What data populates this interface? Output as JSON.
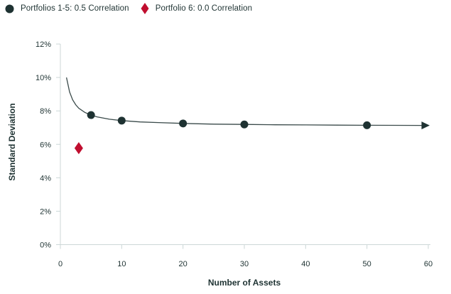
{
  "colors": {
    "ink": "#1e3232",
    "red": "#c00e2f",
    "axis_line": "#ccd7d7",
    "line": "#3a4a4a",
    "background": "#ffffff"
  },
  "legend": {
    "items": [
      {
        "label": "Portfolios 1-5: 0.5 Correlation",
        "marker": "circle-marker",
        "color": "#1e3232"
      },
      {
        "label": "Portfolio 6: 0.0 Correlation",
        "marker": "diamond-marker",
        "color": "#c00e2f"
      }
    ]
  },
  "chart_data": {
    "type": "line",
    "title": "",
    "xlabel": "Number of Assets",
    "ylabel": "Standard Deviation",
    "xlim": [
      0,
      60
    ],
    "ylim": [
      0,
      12
    ],
    "x_ticks": [
      0,
      10,
      20,
      30,
      40,
      50,
      60
    ],
    "y_ticks": [
      "0%",
      "2%",
      "4%",
      "6%",
      "8%",
      "10%",
      "12%"
    ],
    "y_tick_values": [
      0,
      2,
      4,
      6,
      8,
      10,
      12
    ],
    "grid": false,
    "legend_position": "top-left",
    "series": [
      {
        "name": "Portfolios 1-5: 0.5 Correlation",
        "type": "line+markers",
        "marker": "circle",
        "color": "#1e3232",
        "markers": [
          [
            5,
            7.75
          ],
          [
            10,
            7.42
          ],
          [
            20,
            7.25
          ],
          [
            30,
            7.19
          ],
          [
            50,
            7.14
          ]
        ],
        "curve": [
          [
            1,
            10.0
          ],
          [
            1.5,
            9.13
          ],
          [
            2,
            8.66
          ],
          [
            2.5,
            8.37
          ],
          [
            3,
            8.16
          ],
          [
            4,
            7.91
          ],
          [
            5,
            7.75
          ],
          [
            6,
            7.64
          ],
          [
            8,
            7.5
          ],
          [
            10,
            7.42
          ],
          [
            13,
            7.34
          ],
          [
            16,
            7.3
          ],
          [
            20,
            7.25
          ],
          [
            25,
            7.21
          ],
          [
            30,
            7.19
          ],
          [
            35,
            7.17
          ],
          [
            40,
            7.16
          ],
          [
            45,
            7.15
          ],
          [
            50,
            7.14
          ],
          [
            55,
            7.135
          ],
          [
            59,
            7.13
          ]
        ],
        "arrow_end": true,
        "asymptote": 7.07
      },
      {
        "name": "Portfolio 6: 0.0 Correlation",
        "type": "scatter",
        "marker": "diamond",
        "color": "#c00e2f",
        "points": [
          [
            3,
            5.77
          ]
        ]
      }
    ]
  }
}
